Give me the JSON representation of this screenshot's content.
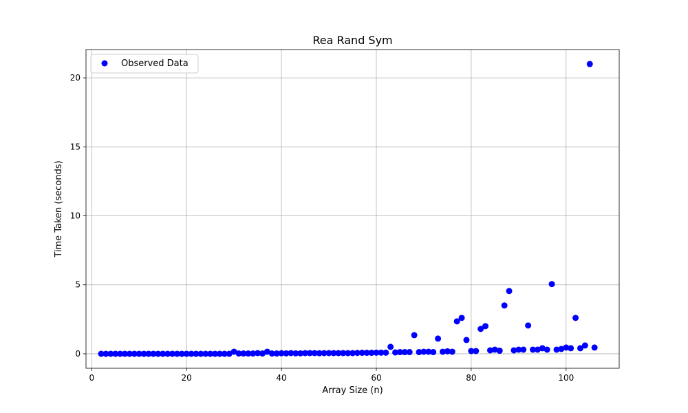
{
  "chart_data": {
    "type": "scatter",
    "title": "Rea Rand Sym",
    "xlabel": "Array Size (n)",
    "ylabel": "Time Taken (seconds)",
    "xlim": [
      -1.2,
      111.2
    ],
    "ylim": [
      -1.05,
      22.05
    ],
    "x_ticks": [
      0,
      20,
      40,
      60,
      80,
      100
    ],
    "y_ticks": [
      0,
      5,
      10,
      15,
      20
    ],
    "grid": true,
    "legend_position": "top-left",
    "series": [
      {
        "name": "Observed Data",
        "color": "#0000ff",
        "marker": "circle",
        "x": [
          2,
          3,
          4,
          5,
          6,
          7,
          8,
          9,
          10,
          11,
          12,
          13,
          14,
          15,
          16,
          17,
          18,
          19,
          20,
          21,
          22,
          23,
          24,
          25,
          26,
          27,
          28,
          29,
          30,
          31,
          32,
          33,
          34,
          35,
          36,
          37,
          38,
          39,
          40,
          41,
          42,
          43,
          44,
          45,
          46,
          47,
          48,
          49,
          50,
          51,
          52,
          53,
          54,
          55,
          56,
          57,
          58,
          59,
          60,
          61,
          62,
          63,
          64,
          65,
          66,
          67,
          68,
          69,
          70,
          71,
          72,
          73,
          74,
          75,
          76,
          77,
          78,
          79,
          80,
          81,
          82,
          83,
          84,
          85,
          86,
          87,
          88,
          89,
          90,
          91,
          92,
          93,
          94,
          95,
          96,
          97,
          98,
          99,
          100,
          101,
          102,
          103,
          104,
          105,
          106
        ],
        "y": [
          0.0,
          0.0,
          0.0,
          0.0,
          0.0,
          0.0,
          0.0,
          0.0,
          0.0,
          0.0,
          0.0,
          0.0,
          0.0,
          0.0,
          0.0,
          0.0,
          0.0,
          0.0,
          0.0,
          0.0,
          0.0,
          0.0,
          0.0,
          0.0,
          0.0,
          0.0,
          0.0,
          0.0,
          0.15,
          0.02,
          0.02,
          0.02,
          0.02,
          0.05,
          0.02,
          0.15,
          0.02,
          0.02,
          0.04,
          0.03,
          0.05,
          0.03,
          0.03,
          0.05,
          0.05,
          0.05,
          0.04,
          0.05,
          0.05,
          0.05,
          0.05,
          0.05,
          0.05,
          0.05,
          0.06,
          0.07,
          0.07,
          0.07,
          0.08,
          0.08,
          0.08,
          0.5,
          0.1,
          0.12,
          0.12,
          0.12,
          1.35,
          0.12,
          0.15,
          0.15,
          0.12,
          1.1,
          0.15,
          0.18,
          0.15,
          2.35,
          2.6,
          1.0,
          0.2,
          0.2,
          1.8,
          2.0,
          0.25,
          0.3,
          0.22,
          3.5,
          4.55,
          0.25,
          0.3,
          0.3,
          2.05,
          0.3,
          0.3,
          0.4,
          0.3,
          5.05,
          0.3,
          0.35,
          0.45,
          0.4,
          2.6,
          0.4,
          0.6,
          21.0,
          0.45
        ]
      }
    ]
  }
}
